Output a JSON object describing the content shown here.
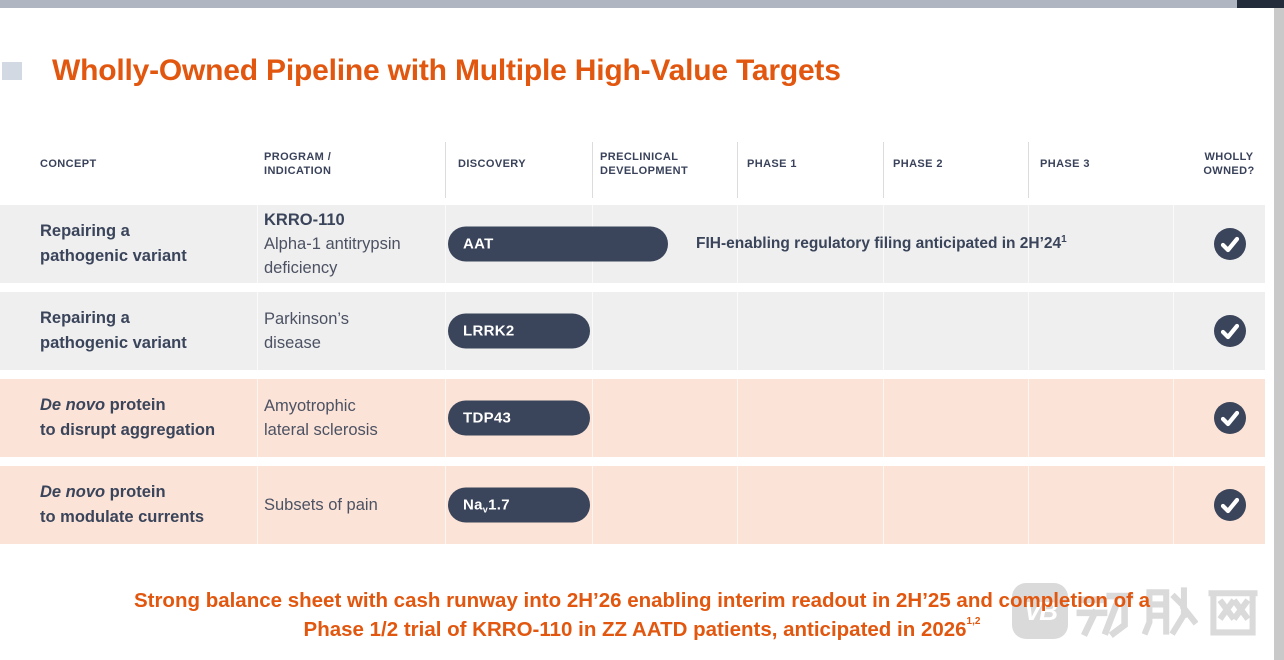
{
  "title": "Wholly-Owned Pipeline with Multiple High-Value Targets",
  "colors": {
    "accent_orange": "#e2570f",
    "navy": "#3a445a",
    "row_gray": "#efefef",
    "row_peach": "#fbe3d7",
    "topbar_gray": "#afb5c1",
    "topbar_dark": "#232c3b",
    "watermark_gray": "#dadada"
  },
  "table": {
    "headers": {
      "concept": "CONCEPT",
      "program_line1": "PROGRAM /",
      "program_line2": "INDICATION",
      "discovery": "DISCOVERY",
      "preclinical_line1": "PRECLINICAL",
      "preclinical_line2": "DEVELOPMENT",
      "phase1": "PHASE 1",
      "phase2": "PHASE 2",
      "phase3": "PHASE 3",
      "wholly_line1": "WHOLLY",
      "wholly_line2": "OWNED?"
    },
    "rows": [
      {
        "concept_em": "",
        "concept_line1": "Repairing a",
        "concept_line2": "pathogenic variant",
        "program_bold": "KRRO-110",
        "program_line1": "Alpha-1 antitrypsin",
        "program_line2": "deficiency",
        "pill": "AAT",
        "pill_sub": "",
        "pill_rest": "",
        "note": "FIH-enabling regulatory filing anticipated in 2H’24",
        "note_sup": "1",
        "wholly_owned": "yes"
      },
      {
        "concept_em": "",
        "concept_line1": "Repairing a",
        "concept_line2": "pathogenic variant",
        "program_bold": "",
        "program_line1": "Parkinson’s",
        "program_line2": "disease",
        "pill": "LRRK2",
        "pill_sub": "",
        "pill_rest": "",
        "note": "",
        "note_sup": "",
        "wholly_owned": "yes"
      },
      {
        "concept_em": "De novo",
        "concept_line1": " protein",
        "concept_line2": "to disrupt aggregation",
        "program_bold": "",
        "program_line1": "Amyotrophic",
        "program_line2": "lateral sclerosis",
        "pill": "TDP43",
        "pill_sub": "",
        "pill_rest": "",
        "note": "",
        "note_sup": "",
        "wholly_owned": "yes"
      },
      {
        "concept_em": "De novo",
        "concept_line1": " protein",
        "concept_line2": "to modulate currents",
        "program_bold": "",
        "program_line1": "Subsets of pain",
        "program_line2": "",
        "pill": "Na",
        "pill_sub": "v",
        "pill_rest": "1.7",
        "note": "",
        "note_sup": "",
        "wholly_owned": "yes"
      }
    ]
  },
  "footer": {
    "line1": "Strong balance sheet with cash runway into 2H’26 enabling interim readout in 2H’25 and completion of a",
    "line2": "Phase 1/2 trial of KRRO-110 in ZZ AATD patients, anticipated in 2026",
    "line2_sup": "1,2"
  },
  "watermark": {
    "logo_text": "VB",
    "text": "动脉网"
  }
}
